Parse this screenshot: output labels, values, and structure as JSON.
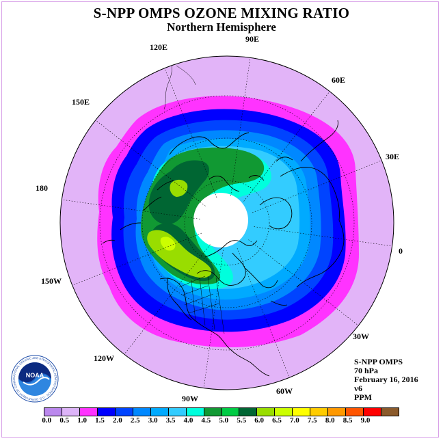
{
  "header": {
    "title": "S-NPP OMPS OZONE MIXING RATIO",
    "subtitle": "Northern Hemisphere"
  },
  "longitude_labels": [
    "90E",
    "60E",
    "30E",
    "0",
    "30W",
    "60W",
    "90W",
    "120W",
    "150W",
    "180",
    "150E",
    "120E"
  ],
  "info": {
    "instrument": "S-NPP OMPS",
    "level": "70 hPa",
    "date": "February 16, 2016",
    "version": "v6",
    "units": "PPM"
  },
  "logo": {
    "name": "NOAA",
    "ring_text": "NATIONAL OCEANIC AND ATMOSPHERIC ADMINISTRATION · U.S. DEPARTMENT OF COMMERCE"
  },
  "colorbar": {
    "colors": [
      "#bb88ee",
      "#ddb4f8",
      "#ff33ff",
      "#0000ff",
      "#0044ff",
      "#0088ff",
      "#00aaff",
      "#33ccff",
      "#00ffdd",
      "#119933",
      "#00cc44",
      "#006633",
      "#99dd00",
      "#ccff00",
      "#ffff00",
      "#ffcc00",
      "#ff9900",
      "#ff5500",
      "#ff0000",
      "#8b5a2b"
    ],
    "ticks": [
      "0.0",
      "0.5",
      "1.0",
      "1.5",
      "2.0",
      "2.5",
      "3.0",
      "3.5",
      "4.0",
      "4.5",
      "5.0",
      "5.5",
      "6.0",
      "6.5",
      "7.0",
      "7.5",
      "8.0",
      "8.5",
      "9.0"
    ]
  },
  "map_colors": {
    "outer": "#e2b4f8",
    "magenta": "#ff33ff",
    "blue1": "#0000ff",
    "blue2": "#0044ff",
    "blue3": "#0088ff",
    "blue4": "#00aaff",
    "cyan": "#33ccff",
    "aqua": "#00ffdd",
    "green": "#119933",
    "dkgreen": "#006633",
    "lime": "#99dd00",
    "yellowgreen": "#ccff00",
    "polar_cap": "#ffffff"
  }
}
